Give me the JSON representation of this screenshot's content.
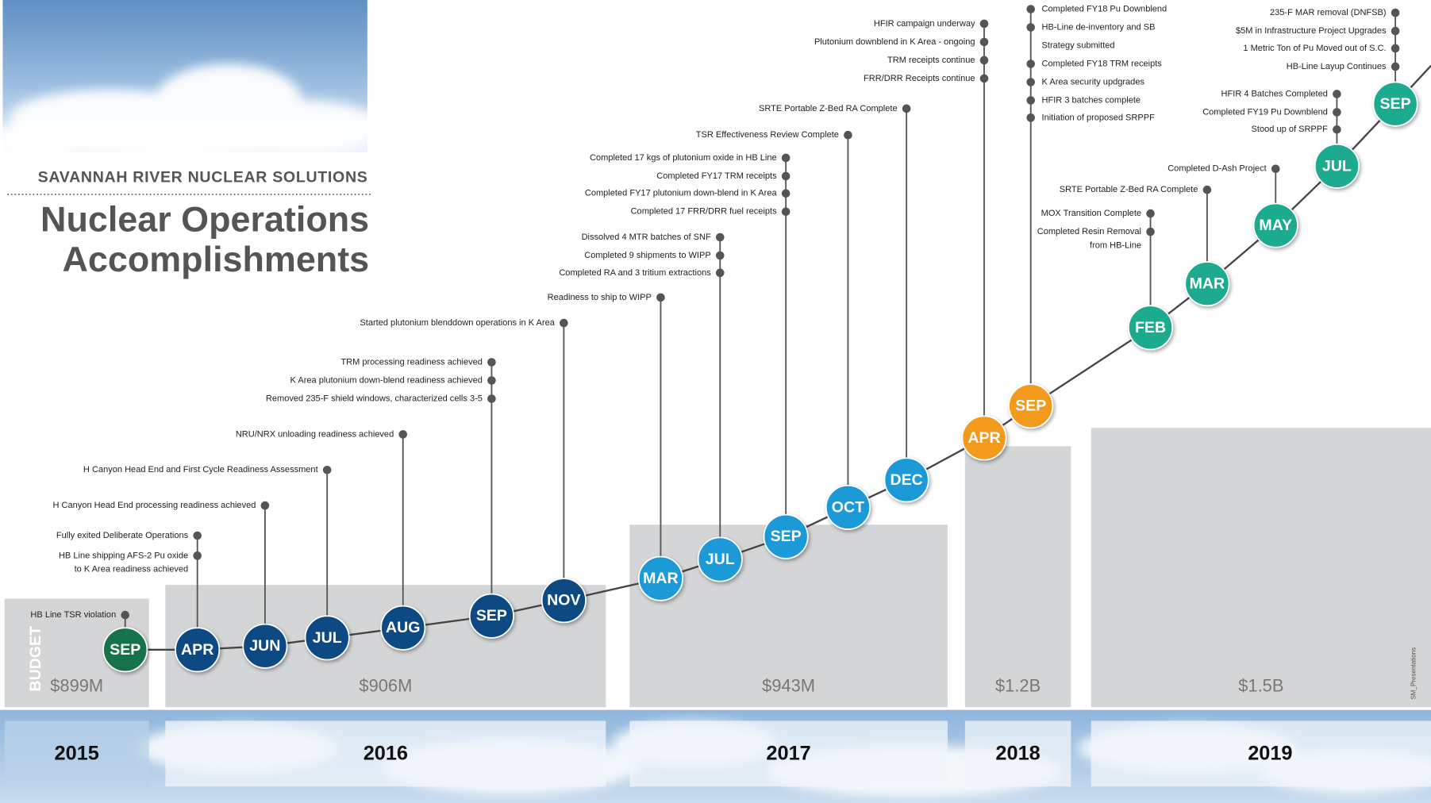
{
  "header": {
    "organization": "SAVANNAH RIVER NUCLEAR SOLUTIONS",
    "title": [
      "Nuclear Operations",
      "Accomplishments"
    ]
  },
  "budget_label": "BUDGET",
  "credit": "SM_Presentations",
  "years": [
    {
      "year": "2015",
      "budget": "$899M",
      "color": "#16734a",
      "milestones": [
        {
          "month": "SEP",
          "items": [
            "HB Line TSR violation"
          ]
        }
      ]
    },
    {
      "year": "2016",
      "budget": "$906M",
      "color": "#0c4a82",
      "milestones": [
        {
          "month": "APR",
          "items": [
            "Fully exited Deliberate Operations",
            [
              "HB Line shipping AFS-2 Pu oxide",
              "to K Area readiness achieved"
            ]
          ]
        },
        {
          "month": "JUN",
          "items": [
            "H Canyon Head End processing readiness achieved"
          ]
        },
        {
          "month": "JUL",
          "items": [
            "H Canyon Head End and First Cycle Readiness Assessment"
          ]
        },
        {
          "month": "AUG",
          "items": [
            "NRU/NRX unloading readiness achieved"
          ]
        },
        {
          "month": "SEP",
          "items": [
            "TRM processing readiness achieved",
            "K Area plutonium down-blend readiness achieved",
            "Removed 235-F shield windows, characterized cells 3-5"
          ]
        },
        {
          "month": "NOV",
          "items": [
            "Started plutonium blenddown operations in K Area"
          ]
        }
      ]
    },
    {
      "year": "2017",
      "budget": "$943M",
      "color": "#1d9ad8",
      "milestones": [
        {
          "month": "MAR",
          "items": [
            "Readiness to ship to WIPP"
          ]
        },
        {
          "month": "JUL",
          "items": [
            "Dissolved 4 MTR batches of SNF",
            "Completed 9 shipments to WIPP",
            "Completed RA and 3 tritium extractions"
          ]
        },
        {
          "month": "SEP",
          "items": [
            "Completed 17 kgs of plutonium oxide in HB Line",
            "Completed FY17 TRM receipts",
            "Completed FY17 plutonium down-blend in K Area",
            "Completed 17 FRR/DRR fuel receipts"
          ]
        },
        {
          "month": "OCT",
          "items": [
            "TSR Effectiveness Review Complete"
          ]
        },
        {
          "month": "DEC",
          "items": [
            "SRTE Portable Z-Bed RA Complete"
          ]
        }
      ]
    },
    {
      "year": "2018",
      "budget": "$1.2B",
      "color": "#f39a1f",
      "milestones": [
        {
          "month": "APR",
          "items": [
            "HFIR  campaign underway",
            "Plutonium downblend in K Area - ongoing",
            "TRM receipts continue",
            "FRR/DRR Receipts continue"
          ]
        },
        {
          "month": "SEP",
          "items": [
            "Completed FY18 Pu Downblend",
            [
              "HB-Line de-inventory and SB",
              "Strategy submitted"
            ],
            "Completed FY18 TRM receipts",
            "K Area security updgrades",
            "HFIR 3 batches complete",
            "Initiation of proposed SRPPF"
          ]
        }
      ]
    },
    {
      "year": "2019",
      "budget": "$1.5B",
      "color": "#1aab8e",
      "milestones": [
        {
          "month": "FEB",
          "items": [
            "MOX Transition Complete",
            [
              "Completed Resin Removal",
              "from HB-Line"
            ]
          ]
        },
        {
          "month": "MAR",
          "items": [
            "SRTE Portable Z-Bed RA Complete"
          ]
        },
        {
          "month": "MAY",
          "items": [
            "Completed D-Ash Project"
          ]
        },
        {
          "month": "JUL",
          "items": [
            "HFIR 4 Batches Completed",
            "Completed FY19 Pu Downblend",
            "Stood up of SRPPF"
          ]
        },
        {
          "month": "SEP",
          "items": [
            "235-F MAR removal (DNFSB)",
            "$5M in Infrastructure Project Upgrades",
            "1 Metric Ton of Pu Moved out of S.C.",
            "HB-Line Layup Continues"
          ]
        }
      ]
    }
  ]
}
